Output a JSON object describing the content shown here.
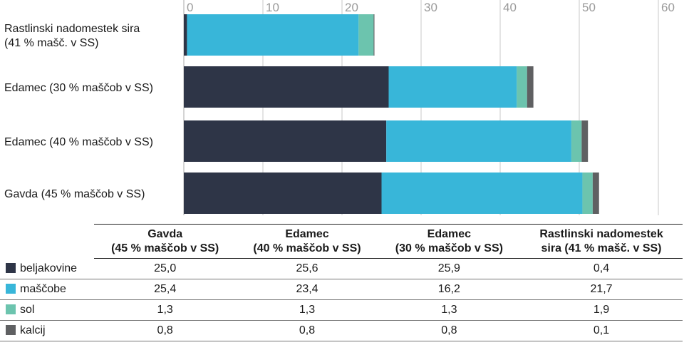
{
  "chart_data": {
    "type": "bar",
    "orientation": "horizontal",
    "stacked": true,
    "categories": [
      "Rastlinski nadomestek sira (41 % mašč. v SS)",
      "Edamec (30 % maščob v SS)",
      "Edamec (40 % maščob v SS)",
      "Gavda (45 % maščob v SS)"
    ],
    "category_label_lines": [
      [
        "Rastlinski nadomestek sira",
        "(41 % mašč. v SS)"
      ],
      [
        "Edamec (30 % maščob v SS)"
      ],
      [
        "Edamec (40 % maščob v SS)"
      ],
      [
        "Gavda (45 % maščob v SS)"
      ]
    ],
    "series": [
      {
        "name": "beljakovine",
        "color": "#2e3547",
        "values": [
          0.4,
          25.9,
          25.6,
          25.0
        ]
      },
      {
        "name": "maščobe",
        "color": "#38b6d9",
        "values": [
          21.7,
          16.2,
          23.4,
          25.4
        ]
      },
      {
        "name": "sol",
        "color": "#6cc4ae",
        "values": [
          1.9,
          1.3,
          1.3,
          1.3
        ]
      },
      {
        "name": "kalcij",
        "color": "#5f6062",
        "values": [
          0.1,
          0.8,
          0.8,
          0.8
        ]
      }
    ],
    "xlim": [
      0,
      60
    ],
    "xticks": [
      0,
      10,
      20,
      30,
      40,
      50,
      60
    ],
    "xlabel": "",
    "ylabel": "",
    "title": "",
    "grid": true
  },
  "table": {
    "columns": [
      {
        "line1": "Gavda",
        "line2": "(45 % maščob v SS)"
      },
      {
        "line1": "Edamec",
        "line2": "(40 % maščob v SS)"
      },
      {
        "line1": "Edamec",
        "line2": "(30 % maščob v SS)"
      },
      {
        "line1": "Rastlinski nadomestek",
        "line2": "sira (41 % mašč. v SS)"
      }
    ],
    "rows": [
      {
        "name": "beljakovine",
        "color": "#2e3547",
        "values": [
          "25,0",
          "25,6",
          "25,9",
          "0,4"
        ]
      },
      {
        "name": "maščobe",
        "color": "#38b6d9",
        "values": [
          "25,4",
          "23,4",
          "16,2",
          "21,7"
        ]
      },
      {
        "name": "sol",
        "color": "#6cc4ae",
        "values": [
          "1,3",
          "1,3",
          "1,3",
          "1,9"
        ]
      },
      {
        "name": "kalcij",
        "color": "#5f6062",
        "values": [
          "0,8",
          "0,8",
          "0,8",
          "0,1"
        ]
      }
    ]
  }
}
